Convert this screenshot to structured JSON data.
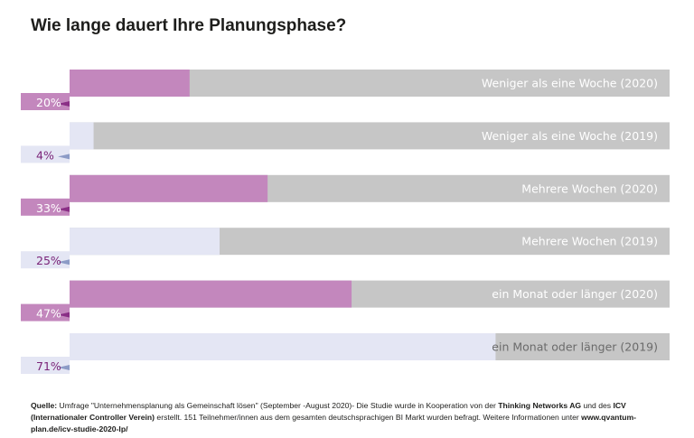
{
  "colors": {
    "accent_2020": "#c387bd",
    "accent_2020_fold": "#8a2f86",
    "light_2019": "#e4e6f4",
    "fold_2019": "#8c9bc6",
    "track_grey": "#c6c6c6",
    "label_text": "#ffffff",
    "label_text_2019_remaining": "#6b6b6b",
    "pct_text": "#7a2378",
    "pct_text_2019": "#4a3a7a"
  },
  "chart_data": {
    "type": "bar",
    "orientation": "horizontal",
    "title": "Wie lange dauert Ihre Planungsphase?",
    "xlim": [
      0,
      100
    ],
    "unit": "%",
    "grid": false,
    "legend": "none",
    "bars": [
      {
        "label": "Weniger als eine Woche (2020)",
        "value": 20,
        "value_label": "20%",
        "year": "2020"
      },
      {
        "label": "Weniger als eine Woche (2019)",
        "value": 4,
        "value_label": "4%",
        "year": "2019"
      },
      {
        "label": "Mehrere Wochen (2020)",
        "value": 33,
        "value_label": "33%",
        "year": "2020"
      },
      {
        "label": "Mehrere Wochen (2019)",
        "value": 25,
        "value_label": "25%",
        "year": "2019"
      },
      {
        "label": "ein Monat oder länger (2020)",
        "value": 47,
        "value_label": "47%",
        "year": "2020"
      },
      {
        "label": "ein Monat oder länger (2019)",
        "value": 71,
        "value_label": "71%",
        "year": "2019"
      }
    ]
  },
  "source": {
    "label": "Quelle:",
    "text1": " Umfrage \"Unternehmensplanung als Gemeinschaft lösen\" (September -August 2020)- Die Studie wurde in Kooperation von der ",
    "org1": "Thinking Networks AG",
    "text2": " und des ",
    "org2": "ICV (Internationaler Controller Verein)",
    "text3": " erstellt. 151 Teilnehmer/innen aus dem gesamten deutschsprachigen BI Markt wurden befragt. Weitere Informationen unter ",
    "url": "www.qvantum-plan.de/icv-studie-2020-lp/"
  }
}
